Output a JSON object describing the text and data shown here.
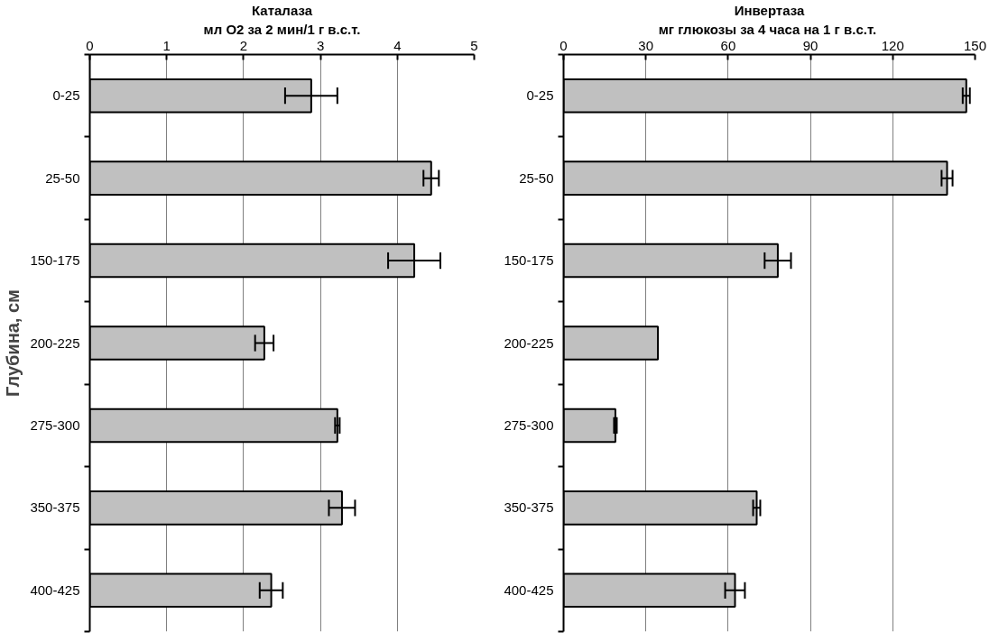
{
  "chart_data": [
    {
      "type": "bar",
      "orientation": "horizontal",
      "title": "Каталаза",
      "subtitle": "мл O2 за 2 мин/1 г в.с.т.",
      "ylabel": "Глубина, см",
      "categories": [
        "0-25",
        "25-50",
        "150-175",
        "200-225",
        "275-300",
        "350-375",
        "400-425"
      ],
      "series": [
        {
          "color": "#c0c0c0",
          "values": [
            2.88,
            4.44,
            4.22,
            2.27,
            3.22,
            3.28,
            2.36
          ],
          "errors": [
            0.34,
            0.1,
            0.34,
            0.12,
            0.03,
            0.17,
            0.15
          ]
        }
      ],
      "xlim": [
        0,
        5
      ],
      "xticks": [
        0,
        1,
        2,
        3,
        4,
        5
      ],
      "grid": "x"
    },
    {
      "type": "bar",
      "orientation": "horizontal",
      "title": "Инвертаза",
      "subtitle": "мг глюкозы за 4 часа на 1 г  в.с.т.",
      "categories": [
        "0-25",
        "25-50",
        "150-175",
        "200-225",
        "275-300",
        "350-375",
        "400-425"
      ],
      "series": [
        {
          "color": "#c0c0c0",
          "values": [
            146.8,
            139.8,
            78.1,
            34.4,
            18.9,
            70.4,
            62.5
          ],
          "errors": [
            1.3,
            2,
            4.8,
            null,
            0.5,
            1.3,
            3.6
          ]
        }
      ],
      "xlim": [
        0,
        150
      ],
      "xticks": [
        0,
        30,
        60,
        90,
        120,
        150
      ],
      "grid": "x"
    }
  ]
}
